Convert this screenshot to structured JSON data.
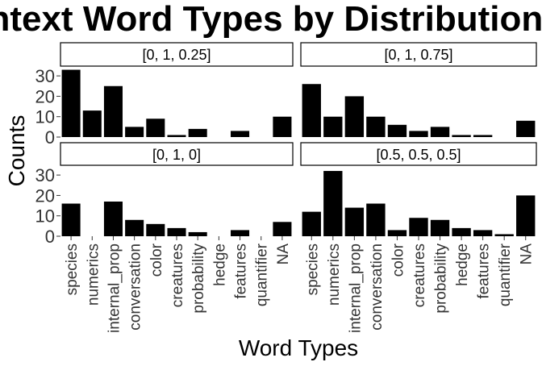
{
  "chart_data": {
    "type": "bar",
    "title": "Context Word Types by Distribution",
    "xlabel": "Word Types",
    "ylabel": "Counts",
    "categories": [
      "species",
      "numerics",
      "internal_prop",
      "conversation",
      "color",
      "creatures",
      "probability",
      "hedge",
      "features",
      "quantifier",
      "NA"
    ],
    "ylim": [
      0,
      34
    ],
    "yticks": [
      0,
      10,
      20,
      30
    ],
    "grid": false,
    "panels": [
      {
        "label": "[0, 1, 0.25]",
        "values": [
          33,
          13,
          25,
          5,
          9,
          1,
          4,
          0,
          3,
          0,
          10
        ]
      },
      {
        "label": "[0, 1, 0.75]",
        "values": [
          26,
          10,
          20,
          10,
          6,
          3,
          5,
          1,
          1,
          0,
          8
        ]
      },
      {
        "label": "[0, 1, 0]",
        "values": [
          16,
          0,
          17,
          8,
          6,
          4,
          2,
          0,
          3,
          0,
          7
        ]
      },
      {
        "label": "[0.5, 0.5, 0.5]",
        "values": [
          12,
          32,
          14,
          16,
          3,
          9,
          8,
          4,
          3,
          1,
          20
        ]
      }
    ]
  }
}
